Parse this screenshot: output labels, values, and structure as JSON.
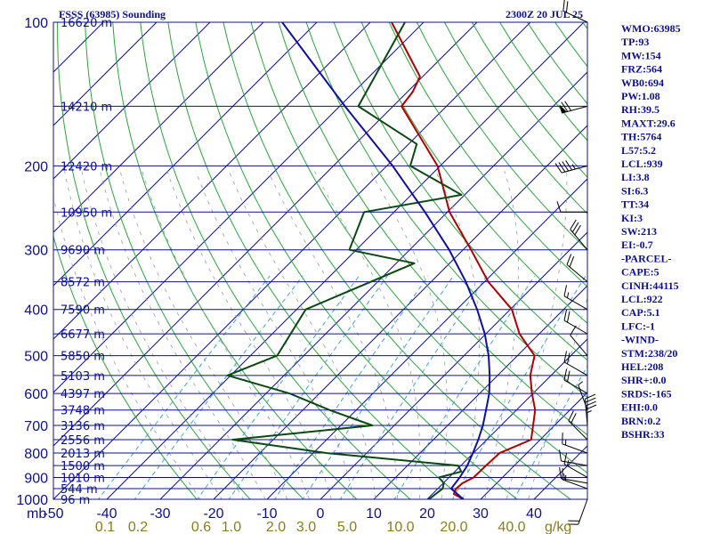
{
  "header": {
    "title": "FSSS (63985) Sounding",
    "time": "2300Z 20 JUL 25"
  },
  "stats": [
    "WMO:63985",
    "TP:93",
    "MW:154",
    "FRZ:564",
    "WB0:694",
    "PW:1.08",
    "RH:39.5",
    "MAXT:29.6",
    "TH:5764",
    "L57:5.2",
    "LCL:939",
    "LI:3.8",
    "SI:6.3",
    "TT:34",
    "KI:3",
    "SW:213",
    "EI:-0.7",
    "-PARCEL-",
    "CAPE:5",
    "CINH:44115",
    "LCL:922",
    "CAP:5.1",
    "LFC:-1",
    "-WIND-",
    "STM:238/20",
    "HEL:208",
    "SHR+:0.0",
    "SRDS:-165",
    "EHI:0.0",
    "BRN:0.2",
    "BSHR:33"
  ],
  "chart_data": {
    "type": "line",
    "chart_kind": "skew-T log-P sounding",
    "y_axis": {
      "scale": "log",
      "range": [
        1000,
        100
      ],
      "ticks": [
        100,
        200,
        300,
        400,
        500,
        600,
        700,
        800,
        900,
        1000
      ],
      "unit_label": "mb"
    },
    "x_axis": {
      "range": [
        -50,
        50
      ],
      "ticks": [
        -50,
        -40,
        -30,
        -20,
        -10,
        0,
        10,
        20,
        30,
        40
      ],
      "skew": "isotherms skewed 45 degrees"
    },
    "height_labels": [
      {
        "p": 100,
        "label": "16620 m"
      },
      {
        "p": 150,
        "label": "14210 m"
      },
      {
        "p": 200,
        "label": "12420 m"
      },
      {
        "p": 250,
        "label": "10950 m"
      },
      {
        "p": 300,
        "label": "9690 m"
      },
      {
        "p": 350,
        "label": "8572 m"
      },
      {
        "p": 400,
        "label": "7590 m"
      },
      {
        "p": 450,
        "label": "6677 m"
      },
      {
        "p": 500,
        "label": "5850 m"
      },
      {
        "p": 550,
        "label": "5103 m"
      },
      {
        "p": 600,
        "label": "4397 m"
      },
      {
        "p": 650,
        "label": "3748 m"
      },
      {
        "p": 700,
        "label": "3136 m"
      },
      {
        "p": 750,
        "label": "2556 m"
      },
      {
        "p": 800,
        "label": "2013 m"
      },
      {
        "p": 850,
        "label": "1500 m"
      },
      {
        "p": 900,
        "label": "1010 m"
      },
      {
        "p": 950,
        "label": "544 m"
      },
      {
        "p": 1000,
        "label": "96 m"
      }
    ],
    "mixing_ratio_labels": [
      "0.1",
      "0.2",
      "0.6",
      "1.0",
      "2.0",
      "3.0",
      "5.0",
      "10.0",
      "20.0",
      "40.0"
    ],
    "mixing_ratio_unit": "g/kg",
    "series": [
      {
        "role": "temperature",
        "color": "#b00000",
        "points": [
          [
            1000,
            26.8
          ],
          [
            975,
            24.0
          ],
          [
            950,
            23.4
          ],
          [
            925,
            23.6
          ],
          [
            900,
            24.6
          ],
          [
            850,
            24.7
          ],
          [
            800,
            24.9
          ],
          [
            750,
            28.3
          ],
          [
            700,
            26.0
          ],
          [
            650,
            23.5
          ],
          [
            600,
            19.8
          ],
          [
            550,
            16.1
          ],
          [
            500,
            13.2
          ],
          [
            450,
            6.3
          ],
          [
            400,
            0.3
          ],
          [
            350,
            -9.3
          ],
          [
            300,
            -18.5
          ],
          [
            250,
            -29.6
          ],
          [
            200,
            -40.5
          ],
          [
            150,
            -58.4
          ],
          [
            140,
            -59.0
          ],
          [
            130,
            -60.5
          ],
          [
            100,
            -76.0
          ]
        ]
      },
      {
        "role": "dewpoint",
        "color": "#0a4a12",
        "points": [
          [
            1000,
            20.3
          ],
          [
            950,
            20.9
          ],
          [
            925,
            20.1
          ],
          [
            900,
            18.1
          ],
          [
            875,
            21.2
          ],
          [
            850,
            19.5
          ],
          [
            800,
            -7.4
          ],
          [
            750,
            -27.6
          ],
          [
            700,
            -4.1
          ],
          [
            650,
            -15.0
          ],
          [
            600,
            -25.6
          ],
          [
            550,
            -40.6
          ],
          [
            500,
            -35.0
          ],
          [
            400,
            -38.3
          ],
          [
            320,
            -26.6
          ],
          [
            300,
            -41.3
          ],
          [
            250,
            -45.6
          ],
          [
            230,
            -30.6
          ],
          [
            200,
            -45.6
          ],
          [
            180,
            -48.5
          ],
          [
            150,
            -66.5
          ],
          [
            100,
            -73.5
          ]
        ]
      },
      {
        "role": "parcel",
        "color": "#1010a0",
        "points": [
          [
            1000,
            26.8
          ],
          [
            950,
            22.5
          ],
          [
            900,
            22.0
          ],
          [
            850,
            21.2
          ],
          [
            800,
            19.9
          ],
          [
            750,
            18.4
          ],
          [
            700,
            16.6
          ],
          [
            650,
            14.3
          ],
          [
            600,
            11.8
          ],
          [
            550,
            8.5
          ],
          [
            500,
            4.6
          ],
          [
            450,
            -0.2
          ],
          [
            400,
            -6.2
          ],
          [
            350,
            -13.5
          ],
          [
            300,
            -22.6
          ],
          [
            250,
            -34.2
          ],
          [
            200,
            -48.9
          ],
          [
            150,
            -69.0
          ],
          [
            100,
            -96.5
          ]
        ]
      }
    ],
    "wind_barbs": [
      {
        "p": 100,
        "dir": 295,
        "speed": 20
      },
      {
        "p": 150,
        "dir": 255,
        "speed": 70
      },
      {
        "p": 200,
        "dir": 255,
        "speed": 45
      },
      {
        "p": 250,
        "dir": 270,
        "speed": 10
      },
      {
        "p": 300,
        "dir": 320,
        "speed": 30
      },
      {
        "p": 350,
        "dir": 310,
        "speed": 20
      },
      {
        "p": 400,
        "dir": 300,
        "speed": 15
      },
      {
        "p": 450,
        "dir": 300,
        "speed": 20
      },
      {
        "p": 500,
        "dir": 320,
        "speed": 10
      },
      {
        "p": 550,
        "dir": 300,
        "speed": 20
      },
      {
        "p": 600,
        "dir": 300,
        "speed": 20
      },
      {
        "p": 650,
        "dir": 340,
        "speed": 5
      },
      {
        "p": 700,
        "dir": 355,
        "speed": 45
      },
      {
        "p": 750,
        "dir": 315,
        "speed": 20
      },
      {
        "p": 800,
        "dir": 290,
        "speed": 15
      },
      {
        "p": 850,
        "dir": 280,
        "speed": 10
      },
      {
        "p": 900,
        "dir": 300,
        "speed": 15
      },
      {
        "p": 925,
        "dir": 280,
        "speed": 15
      },
      {
        "p": 950,
        "dir": 290,
        "speed": 15
      },
      {
        "p": 1000,
        "dir": 200,
        "speed": 20
      }
    ]
  }
}
